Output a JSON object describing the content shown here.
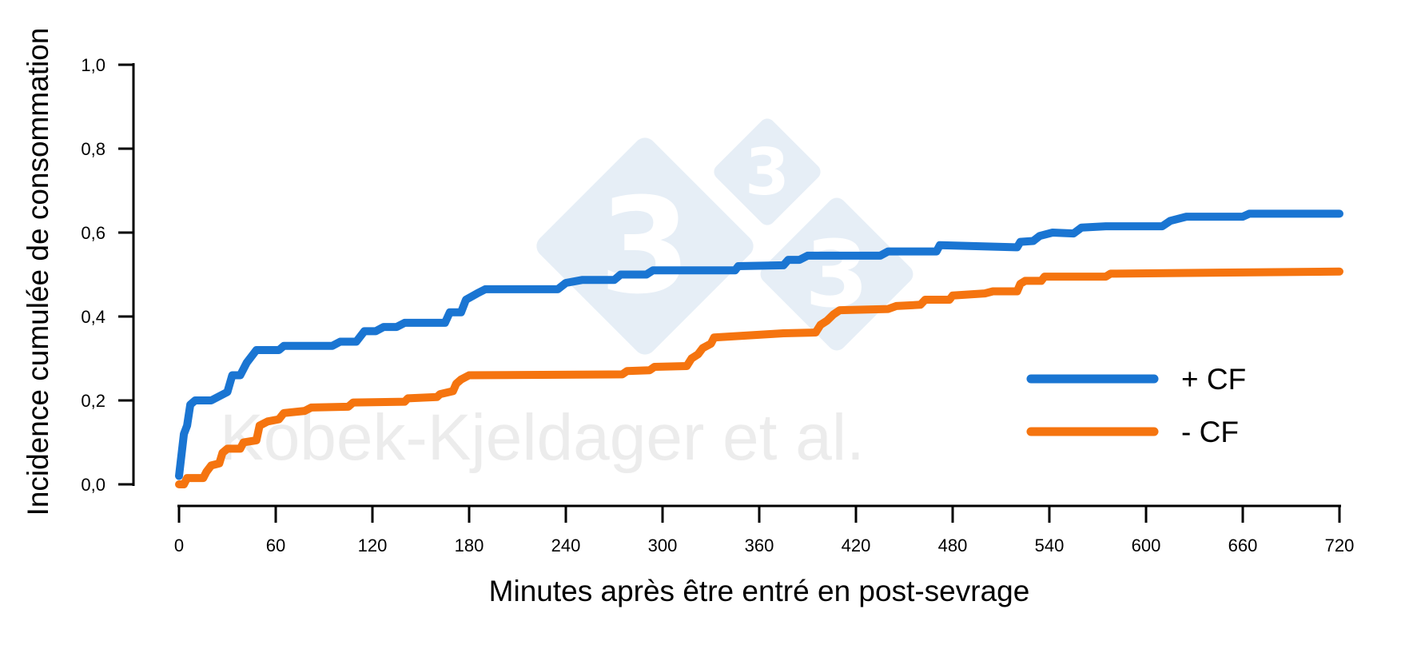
{
  "chart_data": {
    "type": "line",
    "title": "",
    "xlabel": "Minutes après être entré en post-sevrage",
    "ylabel": "Incidence cumulée de consommation",
    "xlim": [
      0,
      720
    ],
    "ylim": [
      0,
      1.0
    ],
    "x_ticks": [
      "0",
      "60",
      "120",
      "180",
      "240",
      "300",
      "360",
      "420",
      "480",
      "540",
      "600",
      "660",
      "720"
    ],
    "y_ticks": [
      "0,0",
      "0,2",
      "0,4",
      "0,6",
      "0,8",
      "1,0"
    ],
    "grid": false,
    "legend_position": "lower right",
    "series": [
      {
        "name": "+ CF",
        "color": "#1a75d2",
        "x": [
          0,
          3,
          5,
          7,
          10,
          20,
          30,
          33,
          38,
          42,
          48,
          62,
          65,
          95,
          100,
          110,
          115,
          122,
          127,
          135,
          140,
          165,
          168,
          175,
          178,
          185,
          190,
          235,
          240,
          250,
          270,
          274,
          290,
          294,
          345,
          347,
          375,
          378,
          385,
          390,
          435,
          440,
          470,
          472,
          520,
          522,
          530,
          534,
          542,
          555,
          560,
          575,
          610,
          615,
          625,
          660,
          664,
          720
        ],
        "values": [
          0.02,
          0.12,
          0.14,
          0.19,
          0.2,
          0.2,
          0.22,
          0.26,
          0.26,
          0.29,
          0.32,
          0.32,
          0.33,
          0.33,
          0.34,
          0.34,
          0.365,
          0.365,
          0.375,
          0.375,
          0.385,
          0.385,
          0.41,
          0.41,
          0.44,
          0.455,
          0.465,
          0.465,
          0.48,
          0.487,
          0.487,
          0.5,
          0.5,
          0.51,
          0.51,
          0.52,
          0.522,
          0.535,
          0.535,
          0.545,
          0.545,
          0.555,
          0.555,
          0.57,
          0.565,
          0.578,
          0.58,
          0.592,
          0.6,
          0.598,
          0.612,
          0.615,
          0.615,
          0.628,
          0.638,
          0.638,
          0.645,
          0.645
        ]
      },
      {
        "name": "- CF",
        "color": "#f5740f",
        "x": [
          0,
          3,
          5,
          15,
          17,
          20,
          25,
          27,
          30,
          38,
          40,
          48,
          50,
          55,
          62,
          65,
          78,
          82,
          105,
          108,
          140,
          142,
          160,
          162,
          170,
          172,
          175,
          180,
          275,
          278,
          292,
          295,
          315,
          318,
          322,
          325,
          330,
          332,
          375,
          395,
          398,
          402,
          406,
          410,
          440,
          445,
          460,
          463,
          478,
          480,
          500,
          505,
          520,
          522,
          525,
          535,
          537,
          575,
          578,
          720
        ],
        "values": [
          0.0,
          0.0,
          0.015,
          0.015,
          0.03,
          0.045,
          0.05,
          0.075,
          0.085,
          0.085,
          0.1,
          0.105,
          0.14,
          0.15,
          0.155,
          0.17,
          0.175,
          0.183,
          0.185,
          0.195,
          0.197,
          0.205,
          0.208,
          0.215,
          0.222,
          0.24,
          0.25,
          0.26,
          0.262,
          0.27,
          0.272,
          0.28,
          0.282,
          0.3,
          0.31,
          0.325,
          0.335,
          0.35,
          0.36,
          0.362,
          0.38,
          0.39,
          0.405,
          0.415,
          0.418,
          0.425,
          0.428,
          0.44,
          0.44,
          0.45,
          0.455,
          0.46,
          0.46,
          0.478,
          0.485,
          0.485,
          0.495,
          0.495,
          0.502,
          0.507
        ]
      }
    ],
    "annotations": [
      "Kobek-Kjeldager et al."
    ]
  },
  "legend": {
    "items": [
      {
        "label": "+ CF",
        "color": "#1a75d2"
      },
      {
        "label": "- CF",
        "color": "#f5740f"
      }
    ]
  },
  "watermark": {
    "text": "Kobek-Kjeldager et al.",
    "logo_digit": "3",
    "logo_color": "#e6eef6"
  }
}
